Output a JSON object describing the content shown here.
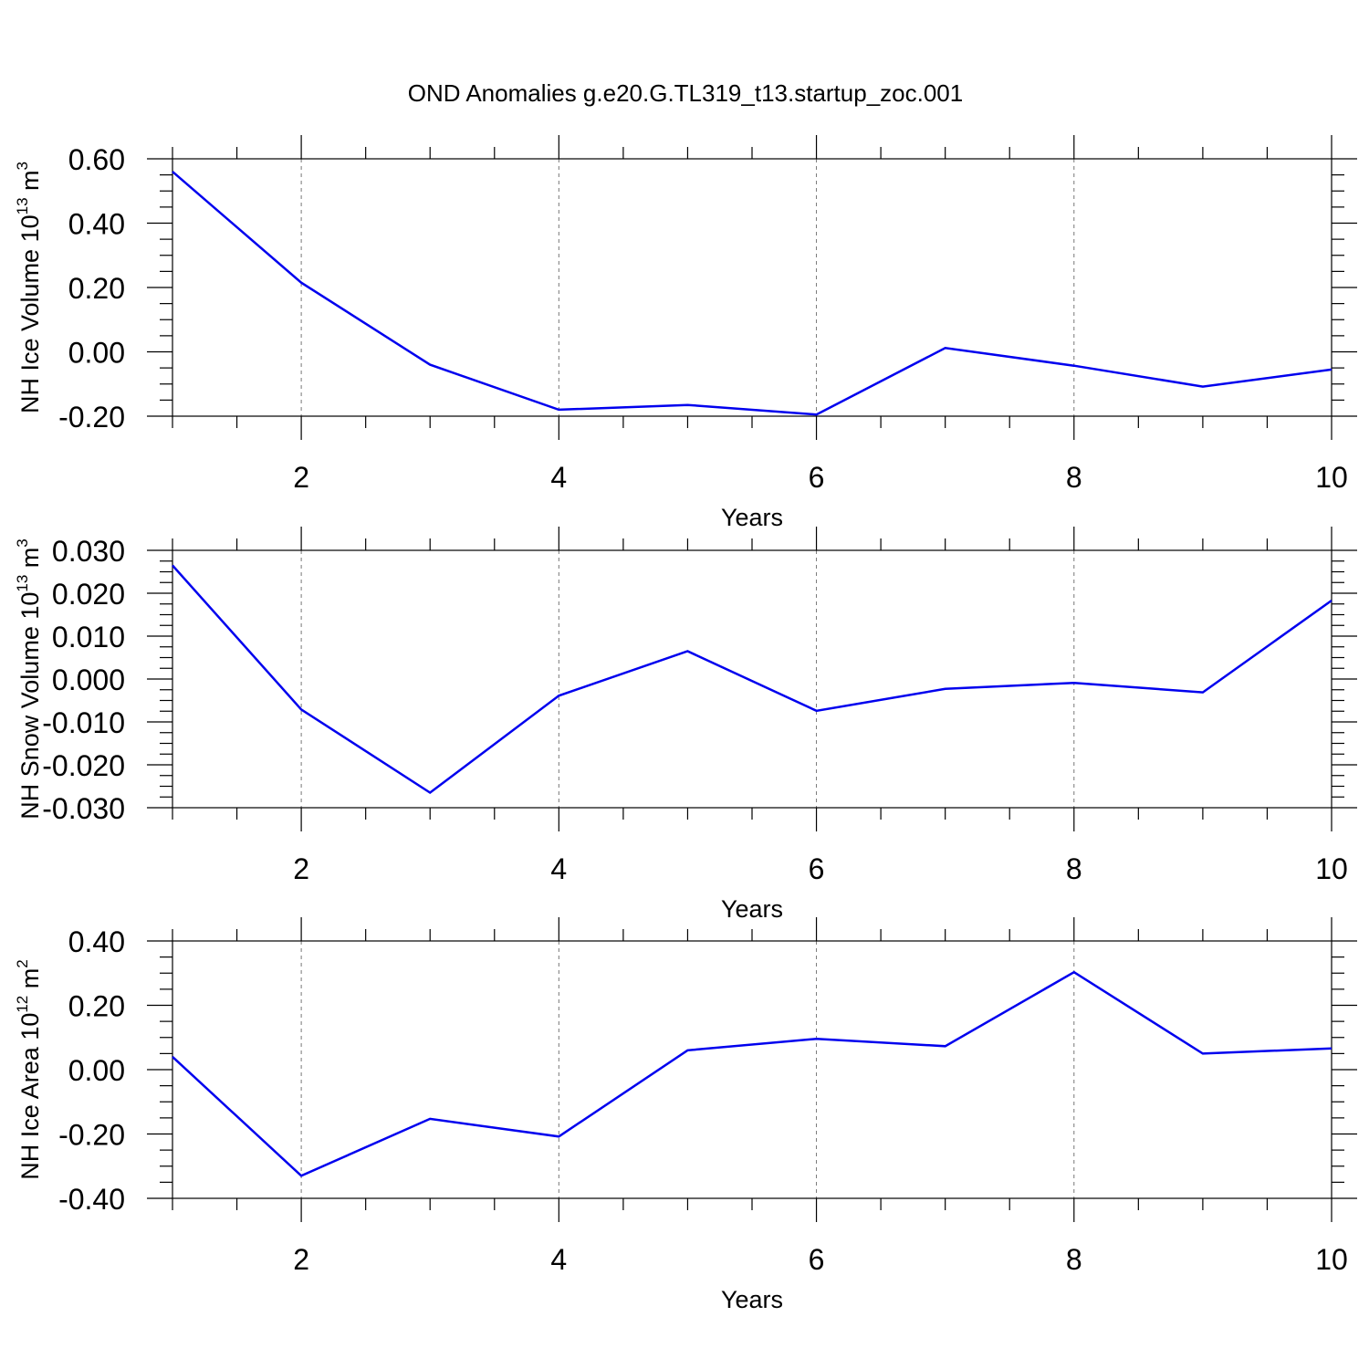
{
  "figure": {
    "title": "OND Anomalies g.e20.G.TL319_t13.startup_zoc.001"
  },
  "chart_data": [
    {
      "type": "line",
      "xlabel": "Years",
      "ylabel": {
        "text": "NH Ice Volume 10",
        "exp": "13",
        "unit": " m",
        "unit_exp": "3"
      },
      "xlim": [
        1,
        10
      ],
      "ylim": [
        -0.2,
        0.6
      ],
      "xticks": [
        2,
        4,
        6,
        8,
        10
      ],
      "yticks": [
        -0.2,
        0.0,
        0.2,
        0.4,
        0.6
      ],
      "ytick_labels": [
        "-0.20",
        "0.00",
        "0.20",
        "0.40",
        "0.60"
      ],
      "x_minor_step": 0.5,
      "y_minor_step": 0.05,
      "vertical_grid": "dashed, at major x ticks",
      "line_color": "#0000ee",
      "x": [
        1,
        2,
        3,
        4,
        5,
        6,
        7,
        8,
        9,
        10
      ],
      "values": [
        0.56,
        0.215,
        -0.04,
        -0.18,
        -0.165,
        -0.195,
        0.012,
        -0.043,
        -0.108,
        -0.055
      ]
    },
    {
      "type": "line",
      "xlabel": "Years",
      "ylabel": {
        "text": "NH Snow Volume 10",
        "exp": "13",
        "unit": " m",
        "unit_exp": "3"
      },
      "xlim": [
        1,
        10
      ],
      "ylim": [
        -0.03,
        0.03
      ],
      "xticks": [
        2,
        4,
        6,
        8,
        10
      ],
      "yticks": [
        -0.03,
        -0.02,
        -0.01,
        0.0,
        0.01,
        0.02,
        0.03
      ],
      "ytick_labels": [
        "-0.030",
        "-0.020",
        "-0.010",
        "0.000",
        "0.010",
        "0.020",
        "0.030"
      ],
      "x_minor_step": 0.5,
      "y_minor_step": 0.0025,
      "vertical_grid": "dashed, at major x ticks",
      "line_color": "#0000ee",
      "x": [
        1,
        2,
        3,
        4,
        5,
        6,
        7,
        8,
        9,
        10
      ],
      "values": [
        0.0265,
        -0.0071,
        -0.0265,
        -0.0039,
        0.0065,
        -0.0074,
        -0.0023,
        -0.0009,
        -0.0031,
        0.0183
      ]
    },
    {
      "type": "line",
      "xlabel": "Years",
      "ylabel": {
        "text": "NH Ice Area 10",
        "exp": "12",
        "unit": " m",
        "unit_exp": "2"
      },
      "xlim": [
        1,
        10
      ],
      "ylim": [
        -0.4,
        0.4
      ],
      "xticks": [
        2,
        4,
        6,
        8,
        10
      ],
      "yticks": [
        -0.4,
        -0.2,
        0.0,
        0.2,
        0.4
      ],
      "ytick_labels": [
        "-0.40",
        "-0.20",
        "0.00",
        "0.20",
        "0.40"
      ],
      "x_minor_step": 0.5,
      "y_minor_step": 0.05,
      "vertical_grid": "dashed, at major x ticks",
      "line_color": "#0000ee",
      "x": [
        1,
        2,
        3,
        4,
        5,
        6,
        7,
        8,
        9,
        10
      ],
      "values": [
        0.04,
        -0.33,
        -0.153,
        -0.208,
        0.06,
        0.096,
        0.073,
        0.303,
        0.05,
        0.066
      ]
    }
  ]
}
